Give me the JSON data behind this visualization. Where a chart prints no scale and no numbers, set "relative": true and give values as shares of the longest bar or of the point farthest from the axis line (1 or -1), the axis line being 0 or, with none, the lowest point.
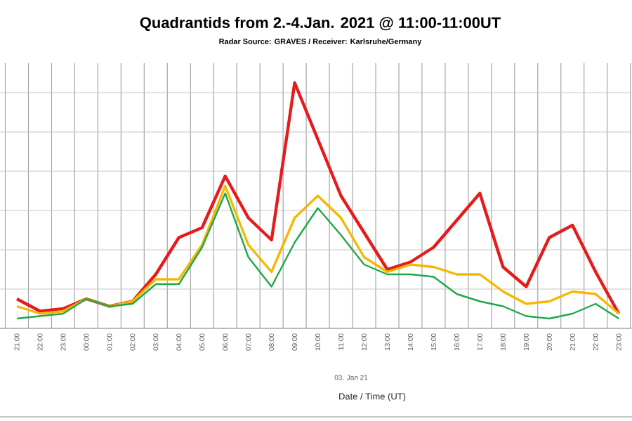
{
  "chart_data": {
    "type": "line",
    "title": "Quadrantids from 2.-4.Jan. 2021 @ 11:00-11:00UT",
    "subtitle": "Radar Source: GRAVES / Receiver: Karlsruhe/Germany",
    "xlabel": "Date / Time (UT)",
    "annotations": [
      "03. Jan 21"
    ],
    "categories": [
      "21:00",
      "22:00",
      "23:00",
      "00:00",
      "01:00",
      "02:00",
      "03:00",
      "04:00",
      "05:00",
      "06:00",
      "07:00",
      "08:00",
      "09:00",
      "10:00",
      "11:00",
      "12:00",
      "13:00",
      "14:00",
      "15:00",
      "16:00",
      "17:00",
      "18:00",
      "19:00",
      "20:00",
      "21:00",
      "22:00",
      "23:00"
    ],
    "relative": true,
    "grid": true,
    "marker": "none",
    "line_style": "solid",
    "series": [
      {
        "color": "#e41c1c",
        "values": [
          0.12,
          0.07,
          0.08,
          0.12,
          0.09,
          0.11,
          0.22,
          0.37,
          0.41,
          0.62,
          0.45,
          0.36,
          1,
          0.77,
          0.54,
          0.39,
          0.24,
          0.27,
          0.33,
          0.44,
          0.55,
          0.25,
          0.17,
          0.37,
          0.42,
          0.23,
          0.06
        ]
      },
      {
        "color": "#f5b800",
        "values": [
          0.09,
          0.06,
          0.07,
          0.12,
          0.09,
          0.11,
          0.2,
          0.2,
          0.34,
          0.58,
          0.34,
          0.23,
          0.45,
          0.54,
          0.45,
          0.29,
          0.23,
          0.26,
          0.25,
          0.22,
          0.22,
          0.15,
          0.1,
          0.11,
          0.15,
          0.14,
          0.06
        ]
      },
      {
        "color": "#1fa84a",
        "values": [
          0.04,
          0.05,
          0.06,
          0.12,
          0.09,
          0.1,
          0.18,
          0.18,
          0.33,
          0.55,
          0.29,
          0.17,
          0.35,
          0.49,
          0.38,
          0.26,
          0.22,
          0.22,
          0.21,
          0.14,
          0.11,
          0.09,
          0.05,
          0.04,
          0.06,
          0.1,
          0.04
        ]
      }
    ]
  }
}
